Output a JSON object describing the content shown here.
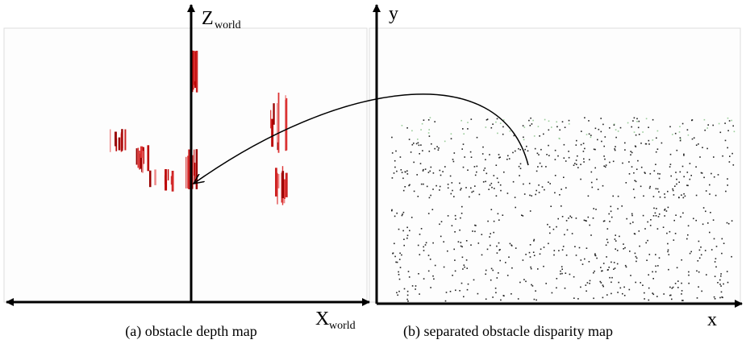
{
  "panel_a": {
    "caption": "(a) obstacle depth map",
    "z_axis": {
      "label": "Z",
      "subscript": "world"
    },
    "x_axis": {
      "label": "X",
      "subscript": "world"
    }
  },
  "panel_b": {
    "caption": "(b) separated obstacle disparity map",
    "y_axis": {
      "label": "y"
    },
    "x_axis": {
      "label": "x"
    }
  }
}
